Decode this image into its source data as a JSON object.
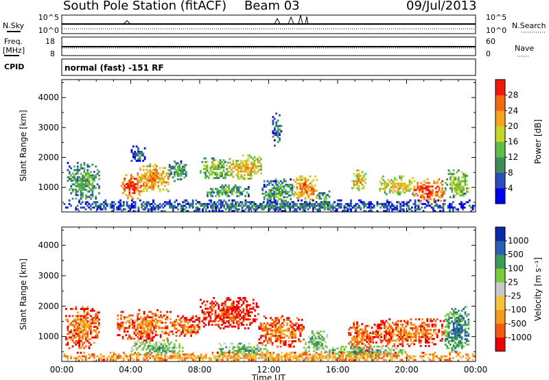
{
  "header": {
    "station_title": "South Pole Station (fitACF)",
    "beam": "Beam 03",
    "date": "09/Jul/2013"
  },
  "top_panels": {
    "nsky_label": "N.Sky",
    "nsky_ticks": [
      "10^5",
      "10^0"
    ],
    "nsearch_label": "N.Search",
    "nsearch_ticks": [
      "10^5",
      "10^0"
    ],
    "freq_label_1": "Freq.",
    "freq_label_2": "[MHz]",
    "freq_ticks": [
      "18",
      "8"
    ],
    "nave_label": "Nave",
    "nave_ticks": [
      "60",
      "0"
    ],
    "cpid_label": "CPID",
    "cpid_text": "normal (fast) -151 RF"
  },
  "colors": {
    "power_scale": [
      "#0000ee",
      "#2a4fb8",
      "#3d8c5a",
      "#5bbf4a",
      "#c8d42a",
      "#f5a21e",
      "#f06a10",
      "#f01a0a"
    ],
    "velocity_scale": [
      "#ee0000",
      "#f45a10",
      "#f59a1e",
      "#f5c43a",
      "#c8c8c8",
      "#7acc3a",
      "#3c9a5a",
      "#2a60b0",
      "#0a2aa8"
    ]
  },
  "chart_data": [
    {
      "type": "heatmap",
      "name": "power",
      "xlabel": "",
      "ylabel": "Slant Range [km]",
      "colorbar_label": "Power [dB]",
      "colorbar_ticks": [
        "4",
        "8",
        "12",
        "16",
        "20",
        "24",
        "28"
      ],
      "y_ticks": [
        "1000",
        "2000",
        "3000",
        "4000"
      ],
      "x_ticks": [],
      "xlim": [
        0,
        24
      ],
      "ylim": [
        180,
        4600
      ],
      "regions": [
        {
          "t0": 0.3,
          "t1": 2.2,
          "r0": 600,
          "r1": 1850,
          "level": 3
        },
        {
          "t0": 3.4,
          "t1": 4.6,
          "r0": 650,
          "r1": 1500,
          "level": 7
        },
        {
          "t0": 4.4,
          "t1": 6.2,
          "r0": 900,
          "r1": 1800,
          "level": 6
        },
        {
          "t0": 6.2,
          "t1": 7.2,
          "r0": 1200,
          "r1": 1900,
          "level": 3
        },
        {
          "t0": 8.0,
          "t1": 9.6,
          "r0": 1300,
          "r1": 2000,
          "level": 4
        },
        {
          "t0": 9.6,
          "t1": 11.6,
          "r0": 1300,
          "r1": 2100,
          "level": 5
        },
        {
          "t0": 8.4,
          "t1": 10.8,
          "r0": 700,
          "r1": 1100,
          "level": 3
        },
        {
          "t0": 11.6,
          "t1": 13.4,
          "r0": 400,
          "r1": 1300,
          "level": 3
        },
        {
          "t0": 13.4,
          "t1": 14.8,
          "r0": 600,
          "r1": 1400,
          "level": 6
        },
        {
          "t0": 14.8,
          "t1": 15.6,
          "r0": 400,
          "r1": 900,
          "level": 3
        },
        {
          "t0": 16.8,
          "t1": 17.6,
          "r0": 900,
          "r1": 1600,
          "level": 5
        },
        {
          "t0": 18.4,
          "t1": 20.4,
          "r0": 800,
          "r1": 1400,
          "level": 5
        },
        {
          "t0": 20.4,
          "t1": 22.2,
          "r0": 500,
          "r1": 1300,
          "level": 7
        },
        {
          "t0": 22.2,
          "t1": 23.6,
          "r0": 700,
          "r1": 1600,
          "level": 4
        },
        {
          "t0": 0.1,
          "t1": 23.9,
          "r0": 200,
          "r1": 600,
          "level": 2
        },
        {
          "t0": 4.0,
          "t1": 4.8,
          "r0": 1900,
          "r1": 2400,
          "level": 2
        },
        {
          "t0": 12.2,
          "t1": 12.7,
          "r0": 2400,
          "r1": 3500,
          "level": 2
        }
      ]
    },
    {
      "type": "heatmap",
      "name": "velocity",
      "xlabel": "Time UT",
      "ylabel": "Slant Range [km]",
      "colorbar_label": "Velocity [m s⁻¹]",
      "colorbar_ticks": [
        "-1000",
        "-500",
        "-100",
        "-25",
        "25",
        "100",
        "500",
        "1000"
      ],
      "y_ticks": [
        "1000",
        "2000",
        "3000",
        "4000"
      ],
      "x_ticks": [
        "00:00",
        "04:00",
        "08:00",
        "12:00",
        "16:00",
        "20:00",
        "00:00"
      ],
      "xlim": [
        0,
        24
      ],
      "ylim": [
        180,
        4600
      ],
      "regions": [
        {
          "t0": 0.2,
          "t1": 2.2,
          "r0": 600,
          "r1": 2000,
          "level": 2
        },
        {
          "t0": 3.2,
          "t1": 6.4,
          "r0": 900,
          "r1": 1900,
          "level": 2
        },
        {
          "t0": 6.4,
          "t1": 8.0,
          "r0": 1000,
          "r1": 1700,
          "level": 2
        },
        {
          "t0": 8.0,
          "t1": 11.4,
          "r0": 1300,
          "r1": 2300,
          "level": 1
        },
        {
          "t0": 11.4,
          "t1": 14.0,
          "r0": 700,
          "r1": 1700,
          "level": 2
        },
        {
          "t0": 14.0,
          "t1": 15.4,
          "r0": 500,
          "r1": 1200,
          "level": 6
        },
        {
          "t0": 16.6,
          "t1": 18.0,
          "r0": 500,
          "r1": 1500,
          "level": 2
        },
        {
          "t0": 18.0,
          "t1": 22.2,
          "r0": 700,
          "r1": 1600,
          "level": 2
        },
        {
          "t0": 22.2,
          "t1": 23.6,
          "r0": 500,
          "r1": 2000,
          "level": 7
        },
        {
          "t0": 4.0,
          "t1": 7.0,
          "r0": 400,
          "r1": 900,
          "level": 6
        },
        {
          "t0": 9.0,
          "t1": 12.0,
          "r0": 300,
          "r1": 800,
          "level": 6
        },
        {
          "t0": 15.0,
          "t1": 20.0,
          "r0": 300,
          "r1": 700,
          "level": 6
        },
        {
          "t0": 0.1,
          "t1": 23.9,
          "r0": 200,
          "r1": 500,
          "level": 3
        }
      ]
    }
  ]
}
